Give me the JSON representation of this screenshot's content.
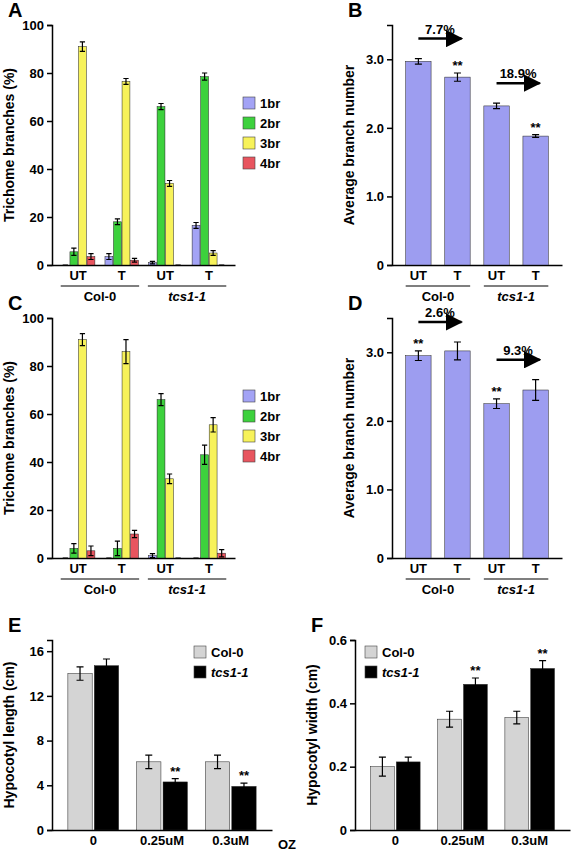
{
  "chart_data": [
    {
      "type": "bar",
      "title": "A",
      "categories": [
        "UT",
        "T",
        "UT",
        "T"
      ],
      "group_labels": [
        "Col-0",
        "tcs1-1"
      ],
      "ylabel": "Trichome branches (%)",
      "ylim": [
        0,
        100
      ],
      "yticks": [
        0,
        20,
        40,
        60,
        80,
        100
      ],
      "legend": "right",
      "series": [
        {
          "name": "1br",
          "color": "#a3a3f5",
          "values": [
            0,
            3.5,
            1,
            16.5
          ],
          "errors": [
            0,
            1.2,
            0.5,
            1.2
          ]
        },
        {
          "name": "2br",
          "color": "#3dd13d",
          "values": [
            5.5,
            18,
            66,
            78.5
          ],
          "errors": [
            1.5,
            1.2,
            1.3,
            1.5
          ]
        },
        {
          "name": "3br",
          "color": "#f7f25a",
          "values": [
            91,
            76.5,
            34,
            5
          ],
          "errors": [
            2,
            1.2,
            1.2,
            1
          ]
        },
        {
          "name": "4br",
          "color": "#e8555f",
          "values": [
            3.5,
            2,
            0,
            0
          ],
          "errors": [
            1.2,
            0.8,
            0,
            0
          ]
        }
      ]
    },
    {
      "type": "bar",
      "title": "B",
      "categories": [
        "UT",
        "T",
        "UT",
        "T"
      ],
      "group_labels": [
        "Col-0",
        "tcs1-1"
      ],
      "ylabel": "Average branch number",
      "ylim": [
        0,
        3.5
      ],
      "yticks": [
        0,
        {
          "value": 1,
          "label": "1.0"
        },
        {
          "value": 2,
          "label": "2.0"
        },
        {
          "value": 3,
          "label": "3.0"
        }
      ],
      "color": "#9d9df0",
      "values": [
        2.97,
        2.74,
        2.32,
        1.88
      ],
      "errors": [
        0.04,
        0.06,
        0.04,
        0.02
      ],
      "annotations": [
        "7.7%",
        "18.9%"
      ],
      "significance": [
        null,
        "**",
        null,
        "**"
      ]
    },
    {
      "type": "bar",
      "title": "C",
      "categories": [
        "UT",
        "T",
        "UT",
        "T"
      ],
      "group_labels": [
        "Col-0",
        "tcs1-1"
      ],
      "ylabel": "Trichome branches (%)",
      "ylim": [
        0,
        100
      ],
      "yticks": [
        0,
        20,
        40,
        60,
        80,
        100
      ],
      "legend": "right",
      "series": [
        {
          "name": "1br",
          "color": "#a3a3f5",
          "values": [
            0,
            0,
            1,
            0
          ],
          "errors": [
            0,
            0,
            0.8,
            0
          ]
        },
        {
          "name": "2br",
          "color": "#3dd13d",
          "values": [
            4,
            4,
            66,
            43
          ],
          "errors": [
            2,
            3,
            2.5,
            4
          ]
        },
        {
          "name": "3br",
          "color": "#f7f25a",
          "values": [
            91,
            86,
            33,
            55.5
          ],
          "errors": [
            2.5,
            5,
            2,
            3
          ]
        },
        {
          "name": "4br",
          "color": "#e8555f",
          "values": [
            3,
            10,
            0,
            2
          ],
          "errors": [
            2,
            1.5,
            0,
            1.5
          ]
        }
      ]
    },
    {
      "type": "bar",
      "title": "D",
      "categories": [
        "UT",
        "T",
        "UT",
        "T"
      ],
      "group_labels": [
        "Col-0",
        "tcs1-1"
      ],
      "ylabel": "Average branch number",
      "ylim": [
        0,
        3.5
      ],
      "yticks": [
        0,
        {
          "value": 1,
          "label": "1.0"
        },
        {
          "value": 2,
          "label": "2.0"
        },
        {
          "value": 3,
          "label": "3.0"
        }
      ],
      "color": "#9d9df0",
      "values": [
        2.95,
        3.02,
        2.25,
        2.45
      ],
      "errors": [
        0.07,
        0.13,
        0.07,
        0.15
      ],
      "annotations": [
        "2.6%",
        "9.3%"
      ],
      "significance": [
        "**",
        null,
        "**",
        null
      ]
    },
    {
      "type": "bar",
      "title": "E",
      "categories": [
        "0",
        "0.25uM",
        "0.3uM"
      ],
      "xlabel": "OZ",
      "ylabel": "Hypocotyl length (cm)",
      "ylim": [
        0,
        17
      ],
      "yticks": [
        0,
        4,
        8,
        12,
        16
      ],
      "legend": "top-right",
      "series": [
        {
          "name": "Col-0",
          "color": "#d4d4d4",
          "values": [
            14.0,
            6.1,
            6.1
          ],
          "errors": [
            0.6,
            0.6,
            0.6
          ]
        },
        {
          "name": "tcs1-1",
          "color": "#000000",
          "values": [
            14.7,
            4.3,
            3.9
          ],
          "errors": [
            0.6,
            0.3,
            0.3
          ],
          "significance": [
            null,
            "**",
            "**"
          ]
        }
      ]
    },
    {
      "type": "bar",
      "title": "F",
      "categories": [
        "0",
        "0.25uM",
        "0.3uM"
      ],
      "ylabel": "Hypocotyl width (cm)",
      "ylim": [
        0,
        0.6
      ],
      "yticks": [
        0,
        0.2,
        0.4,
        0.6
      ],
      "legend": "top-left",
      "series": [
        {
          "name": "Col-0",
          "color": "#d4d4d4",
          "values": [
            0.2,
            0.35,
            0.355
          ],
          "errors": [
            0.03,
            0.025,
            0.02
          ]
        },
        {
          "name": "tcs1-1",
          "color": "#000000",
          "values": [
            0.215,
            0.46,
            0.51
          ],
          "errors": [
            0.015,
            0.02,
            0.025
          ],
          "significance": [
            null,
            "**",
            "**"
          ]
        }
      ]
    }
  ]
}
